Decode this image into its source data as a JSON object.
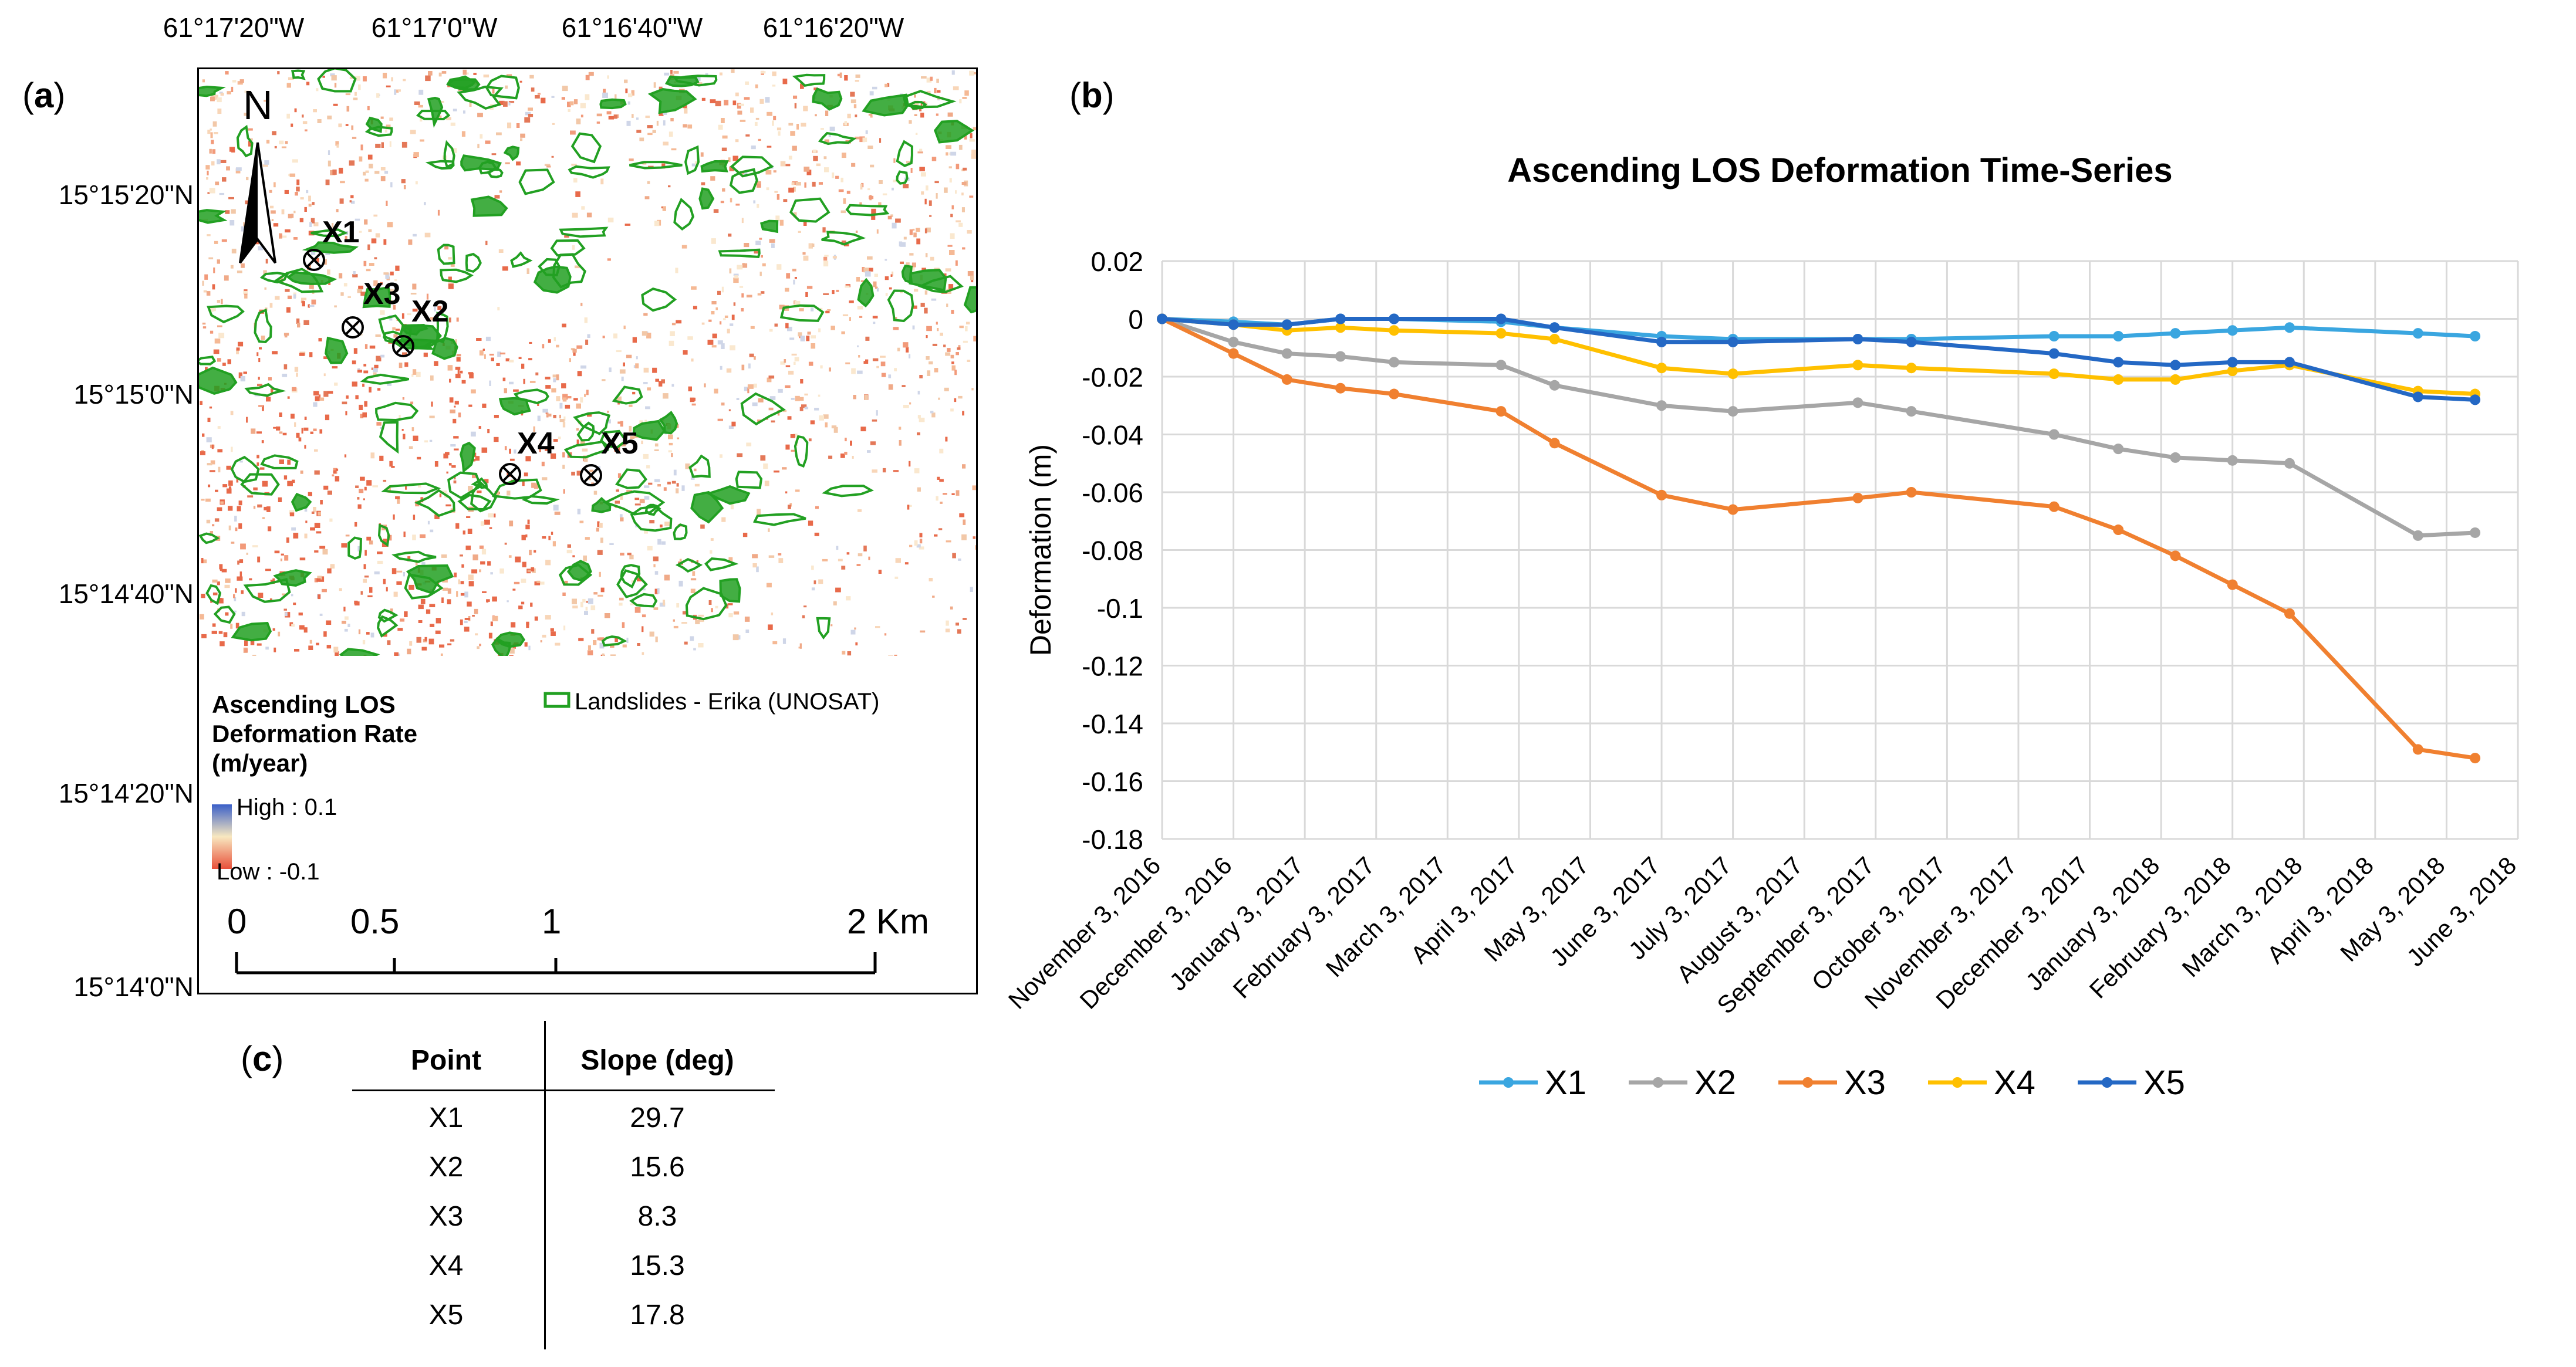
{
  "panel_a": {
    "label_open": "(",
    "label_letter": "a",
    "label_close": ")",
    "lon_labels": [
      "61°17'20\"W",
      "61°17'0\"W",
      "61°16'40\"W",
      "61°16'20\"W"
    ],
    "lat_labels": [
      "15°15'20\"N",
      "15°15'0\"N",
      "15°14'40\"N",
      "15°14'20\"N",
      "15°14'0\"N"
    ],
    "north_label": "N",
    "points": [
      "X1",
      "X2",
      "X3",
      "X4",
      "X5"
    ],
    "legend": {
      "title_lines": [
        "Ascending LOS",
        "Deformation Rate",
        "(m/year)"
      ],
      "high": "High : 0.1",
      "low": "Low : -0.1",
      "landslides": "Landslides - Erika (UNOSAT)"
    },
    "scale_ticks": [
      "0",
      "0.5",
      "1",
      "2 Km"
    ],
    "colors": {
      "landslide": "#22a022",
      "high": "#3a5fc8",
      "low": "#e8503a",
      "mid": "#f8e8c0"
    }
  },
  "panel_b": {
    "label_open": "(",
    "label_letter": "b",
    "label_close": ")"
  },
  "panel_c": {
    "label_open": "(",
    "label_letter": "c",
    "label_close": ")",
    "headers": [
      "Point",
      "Slope (deg)"
    ],
    "rows": [
      [
        "X1",
        "29.7"
      ],
      [
        "X2",
        "15.6"
      ],
      [
        "X3",
        "8.3"
      ],
      [
        "X4",
        "15.3"
      ],
      [
        "X5",
        "17.8"
      ]
    ]
  },
  "chart_data": {
    "type": "line",
    "title": "Ascending LOS Deformation Time-Series",
    "xlabel": "",
    "ylabel": "Deformation (m)",
    "ylim": [
      -0.18,
      0.02
    ],
    "yticks": [
      0.02,
      0,
      -0.02,
      -0.04,
      -0.06,
      -0.08,
      -0.1,
      -0.12,
      -0.14,
      -0.16,
      -0.18
    ],
    "ytick_labels": [
      "0.02",
      "0",
      "-0.02",
      "-0.04",
      "-0.06",
      "-0.08",
      "-0.1",
      "-0.12",
      "-0.14",
      "-0.16",
      "-0.18"
    ],
    "x_tick_labels": [
      "November 3, 2016",
      "December 3, 2016",
      "January 3, 2017",
      "February 3, 2017",
      "March 3, 2017",
      "April 3, 2017",
      "May 3, 2017",
      "June 3, 2017",
      "July 3, 2017",
      "August 3, 2017",
      "September 3, 2017",
      "October 3, 2017",
      "November 3, 2017",
      "December 3, 2017",
      "January 3, 2018",
      "February 3, 2018",
      "March 3, 2018",
      "April 3, 2018",
      "May 3, 2018",
      "June 3, 2018"
    ],
    "x": [
      0,
      1,
      1.75,
      2.5,
      3.25,
      4.75,
      5.5,
      7,
      8,
      9.75,
      10.5,
      12.5,
      13.4,
      14.2,
      15,
      15.8,
      17.6,
      18.4
    ],
    "grid": true,
    "legend_position": "bottom",
    "series": [
      {
        "name": "X1",
        "color": "#3aa6e0",
        "values": [
          0,
          -0.001,
          -0.002,
          0,
          0,
          -0.001,
          -0.003,
          -0.006,
          -0.007,
          -0.007,
          -0.007,
          -0.006,
          -0.006,
          -0.005,
          -0.004,
          -0.003,
          -0.005,
          -0.006
        ]
      },
      {
        "name": "X2",
        "color": "#a6a6a6",
        "values": [
          0,
          -0.008,
          -0.012,
          -0.013,
          -0.015,
          -0.016,
          -0.023,
          -0.03,
          -0.032,
          -0.029,
          -0.032,
          -0.04,
          -0.045,
          -0.048,
          -0.049,
          -0.05,
          -0.075,
          -0.074
        ]
      },
      {
        "name": "X3",
        "color": "#f08030",
        "values": [
          0,
          -0.012,
          -0.021,
          -0.024,
          -0.026,
          -0.032,
          -0.043,
          -0.061,
          -0.066,
          -0.062,
          -0.06,
          -0.065,
          -0.073,
          -0.082,
          -0.092,
          -0.102,
          -0.149,
          -0.152
        ]
      },
      {
        "name": "X4",
        "color": "#ffc000",
        "values": [
          0,
          -0.002,
          -0.004,
          -0.003,
          -0.004,
          -0.005,
          -0.007,
          -0.017,
          -0.019,
          -0.016,
          -0.017,
          -0.019,
          -0.021,
          -0.021,
          -0.018,
          -0.016,
          -0.025,
          -0.026
        ]
      },
      {
        "name": "X5",
        "color": "#2468c4",
        "values": [
          0,
          -0.002,
          -0.002,
          0,
          0,
          0,
          -0.003,
          -0.008,
          -0.008,
          -0.007,
          -0.008,
          -0.012,
          -0.015,
          -0.016,
          -0.015,
          -0.015,
          -0.027,
          -0.028
        ]
      }
    ]
  }
}
